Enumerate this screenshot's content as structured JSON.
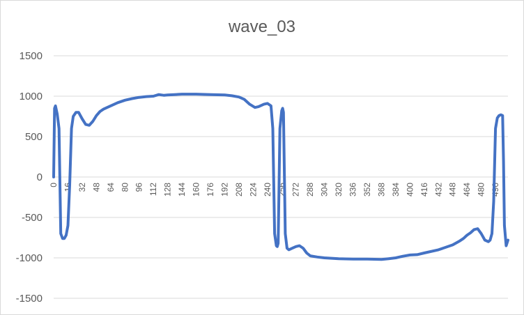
{
  "chart_data": {
    "type": "line",
    "title": "wave_03",
    "xlabel": "",
    "ylabel": "",
    "ylim": [
      -1500,
      1500
    ],
    "xlim": [
      0,
      510
    ],
    "y_ticks": [
      1500,
      1000,
      500,
      0,
      -500,
      -1000,
      -1500
    ],
    "x_ticks": [
      0,
      16,
      32,
      48,
      64,
      80,
      96,
      112,
      128,
      144,
      160,
      176,
      192,
      208,
      224,
      240,
      256,
      272,
      288,
      304,
      320,
      336,
      352,
      368,
      384,
      400,
      416,
      432,
      448,
      464,
      480,
      496
    ],
    "grid": "horizontal",
    "legend": "none",
    "series": [
      {
        "color": "#4472c4",
        "x": [
          0,
          1,
          2,
          4,
          6,
          8,
          10,
          12,
          14,
          16,
          18,
          20,
          22,
          25,
          28,
          32,
          36,
          40,
          44,
          48,
          52,
          56,
          64,
          72,
          80,
          88,
          96,
          104,
          112,
          118,
          124,
          128,
          136,
          144,
          160,
          176,
          192,
          200,
          208,
          214,
          220,
          226,
          230,
          236,
          240,
          244,
          246,
          248,
          250,
          251,
          252,
          254,
          256,
          257,
          258,
          260,
          262,
          264,
          268,
          272,
          276,
          280,
          284,
          288,
          296,
          304,
          320,
          336,
          352,
          368,
          376,
          380,
          384,
          392,
          400,
          408,
          416,
          432,
          448,
          456,
          460,
          464,
          468,
          472,
          476,
          480,
          484,
          488,
          490,
          492,
          494,
          496,
          498,
          500,
          502,
          504,
          505,
          506,
          508,
          510
        ],
        "values": [
          0,
          850,
          880,
          780,
          600,
          -700,
          -760,
          -760,
          -720,
          -600,
          -100,
          600,
          750,
          800,
          800,
          720,
          650,
          640,
          690,
          760,
          810,
          840,
          880,
          920,
          950,
          970,
          985,
          995,
          1000,
          1020,
          1010,
          1015,
          1020,
          1025,
          1025,
          1020,
          1015,
          1005,
          990,
          960,
          900,
          860,
          870,
          900,
          910,
          880,
          600,
          -700,
          -850,
          -860,
          -820,
          600,
          820,
          850,
          800,
          -700,
          -880,
          -900,
          -880,
          -860,
          -850,
          -880,
          -940,
          -975,
          -990,
          -1000,
          -1010,
          -1015,
          -1015,
          -1020,
          -1010,
          -1005,
          -1000,
          -980,
          -965,
          -960,
          -940,
          -900,
          -840,
          -790,
          -760,
          -720,
          -690,
          -650,
          -640,
          -700,
          -780,
          -800,
          -780,
          -700,
          -300,
          600,
          730,
          760,
          770,
          760,
          200,
          -600,
          -850,
          -780
        ]
      }
    ]
  }
}
